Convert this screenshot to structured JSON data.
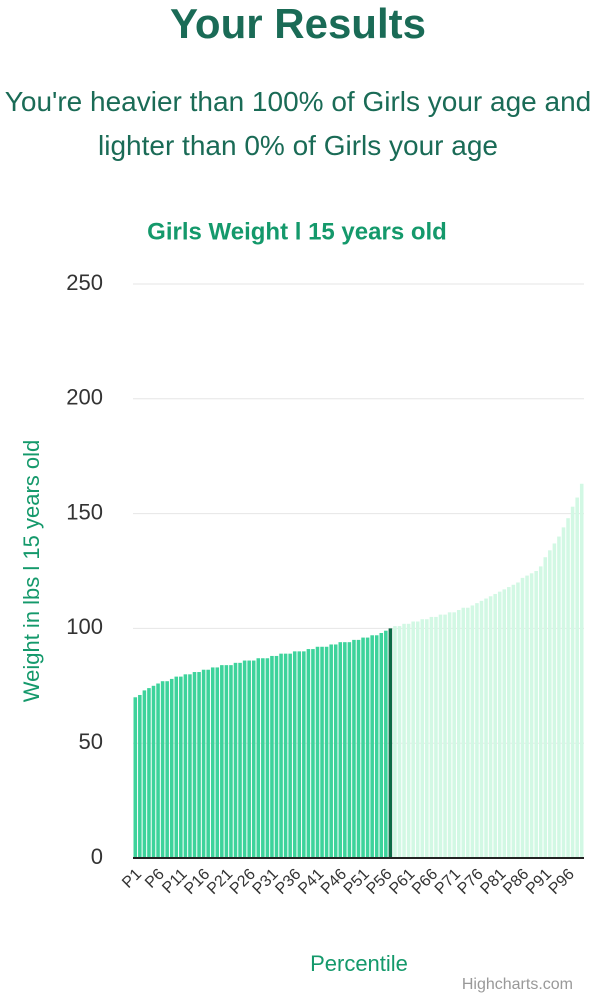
{
  "header": {
    "title": "Your Results",
    "subtitle": "You're heavier than 100% of Girls your age and lighter than 0% of Girls your age"
  },
  "chart_data": {
    "type": "bar",
    "title": "Girls Weight l 15 years old",
    "x_label": "Percentile",
    "y_label": "Weight in lbs l 15 years old",
    "credit": "Highcharts.com",
    "categories": [
      "P1",
      null,
      null,
      null,
      null,
      "P6",
      null,
      null,
      null,
      null,
      "P11",
      null,
      null,
      null,
      null,
      "P16",
      null,
      null,
      null,
      null,
      "P21",
      null,
      null,
      null,
      null,
      "P26",
      null,
      null,
      null,
      null,
      "P31",
      null,
      null,
      null,
      null,
      "P36",
      null,
      null,
      null,
      null,
      "P41",
      null,
      null,
      null,
      null,
      "P46",
      null,
      null,
      null,
      null,
      "P51",
      null,
      null,
      null,
      null,
      "P56",
      null,
      null,
      null,
      null,
      "P61",
      null,
      null,
      null,
      null,
      "P66",
      null,
      null,
      null,
      null,
      "P71",
      null,
      null,
      null,
      null,
      "P76",
      null,
      null,
      null,
      null,
      "P81",
      null,
      null,
      null,
      null,
      "P86",
      null,
      null,
      null,
      null,
      "P91",
      null,
      null,
      null,
      null,
      "P96",
      null,
      null,
      null
    ],
    "values": [
      70,
      71,
      73,
      74,
      75,
      76,
      77,
      77,
      78,
      79,
      79,
      80,
      80,
      81,
      81,
      82,
      82,
      83,
      83,
      84,
      84,
      84,
      85,
      85,
      86,
      86,
      86,
      87,
      87,
      87,
      88,
      88,
      89,
      89,
      89,
      90,
      90,
      90,
      91,
      91,
      92,
      92,
      92,
      93,
      93,
      94,
      94,
      94,
      95,
      95,
      96,
      96,
      97,
      97,
      98,
      99,
      100,
      101,
      101,
      102,
      102,
      103,
      103,
      104,
      104,
      105,
      105,
      106,
      106,
      107,
      107,
      108,
      109,
      109,
      110,
      111,
      112,
      113,
      114,
      115,
      116,
      117,
      118,
      119,
      120,
      122,
      123,
      124,
      125,
      127,
      131,
      134,
      137,
      140,
      144,
      148,
      153,
      157,
      163
    ],
    "color": "#3dd39b",
    "after_color": "#d2f8e4",
    "highlight": {
      "index": 56,
      "color": "#0c6b46"
    },
    "ylim": [
      0,
      250
    ],
    "yticks": [
      0,
      50,
      100,
      150,
      200,
      250
    ],
    "grid": true
  }
}
